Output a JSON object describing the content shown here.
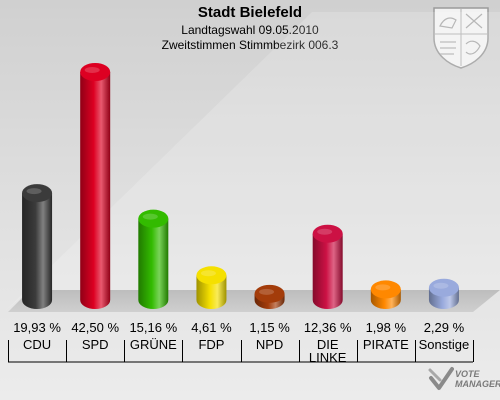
{
  "header": {
    "title": "Stadt Bielefeld",
    "subtitle1": "Landtagswahl 09.05.2010",
    "subtitle2": "Zweitstimmen Stimmbezirk 006.3"
  },
  "watermark": {
    "line1": "VOTE",
    "line2": "MANAGER"
  },
  "chart_data": {
    "type": "bar",
    "categories": [
      "CDU",
      "SPD",
      "GRÜNE",
      "FDP",
      "NPD",
      "DIE LINKE",
      "PIRATE",
      "Sonstige"
    ],
    "category_lines": [
      [
        "CDU"
      ],
      [
        "SPD"
      ],
      [
        "GRÜNE"
      ],
      [
        "FDP"
      ],
      [
        "NPD"
      ],
      [
        "DIE",
        "LINKE"
      ],
      [
        "PIRATE"
      ],
      [
        "Sonstige"
      ]
    ],
    "values": [
      19.93,
      42.5,
      15.16,
      4.61,
      1.15,
      12.36,
      1.98,
      2.29
    ],
    "value_labels": [
      "19,93 %",
      "42,50 %",
      "15,16 %",
      "4,61 %",
      "1,15 %",
      "12,36 %",
      "1,98 %",
      "2,29 %"
    ],
    "colors": [
      "#3b3b3b",
      "#dd0022",
      "#33bb00",
      "#f5e000",
      "#a33c0a",
      "#cc1144",
      "#ff8800",
      "#99aadd"
    ],
    "ylim": [
      0,
      42.5
    ],
    "grid": false,
    "legend": "none"
  }
}
